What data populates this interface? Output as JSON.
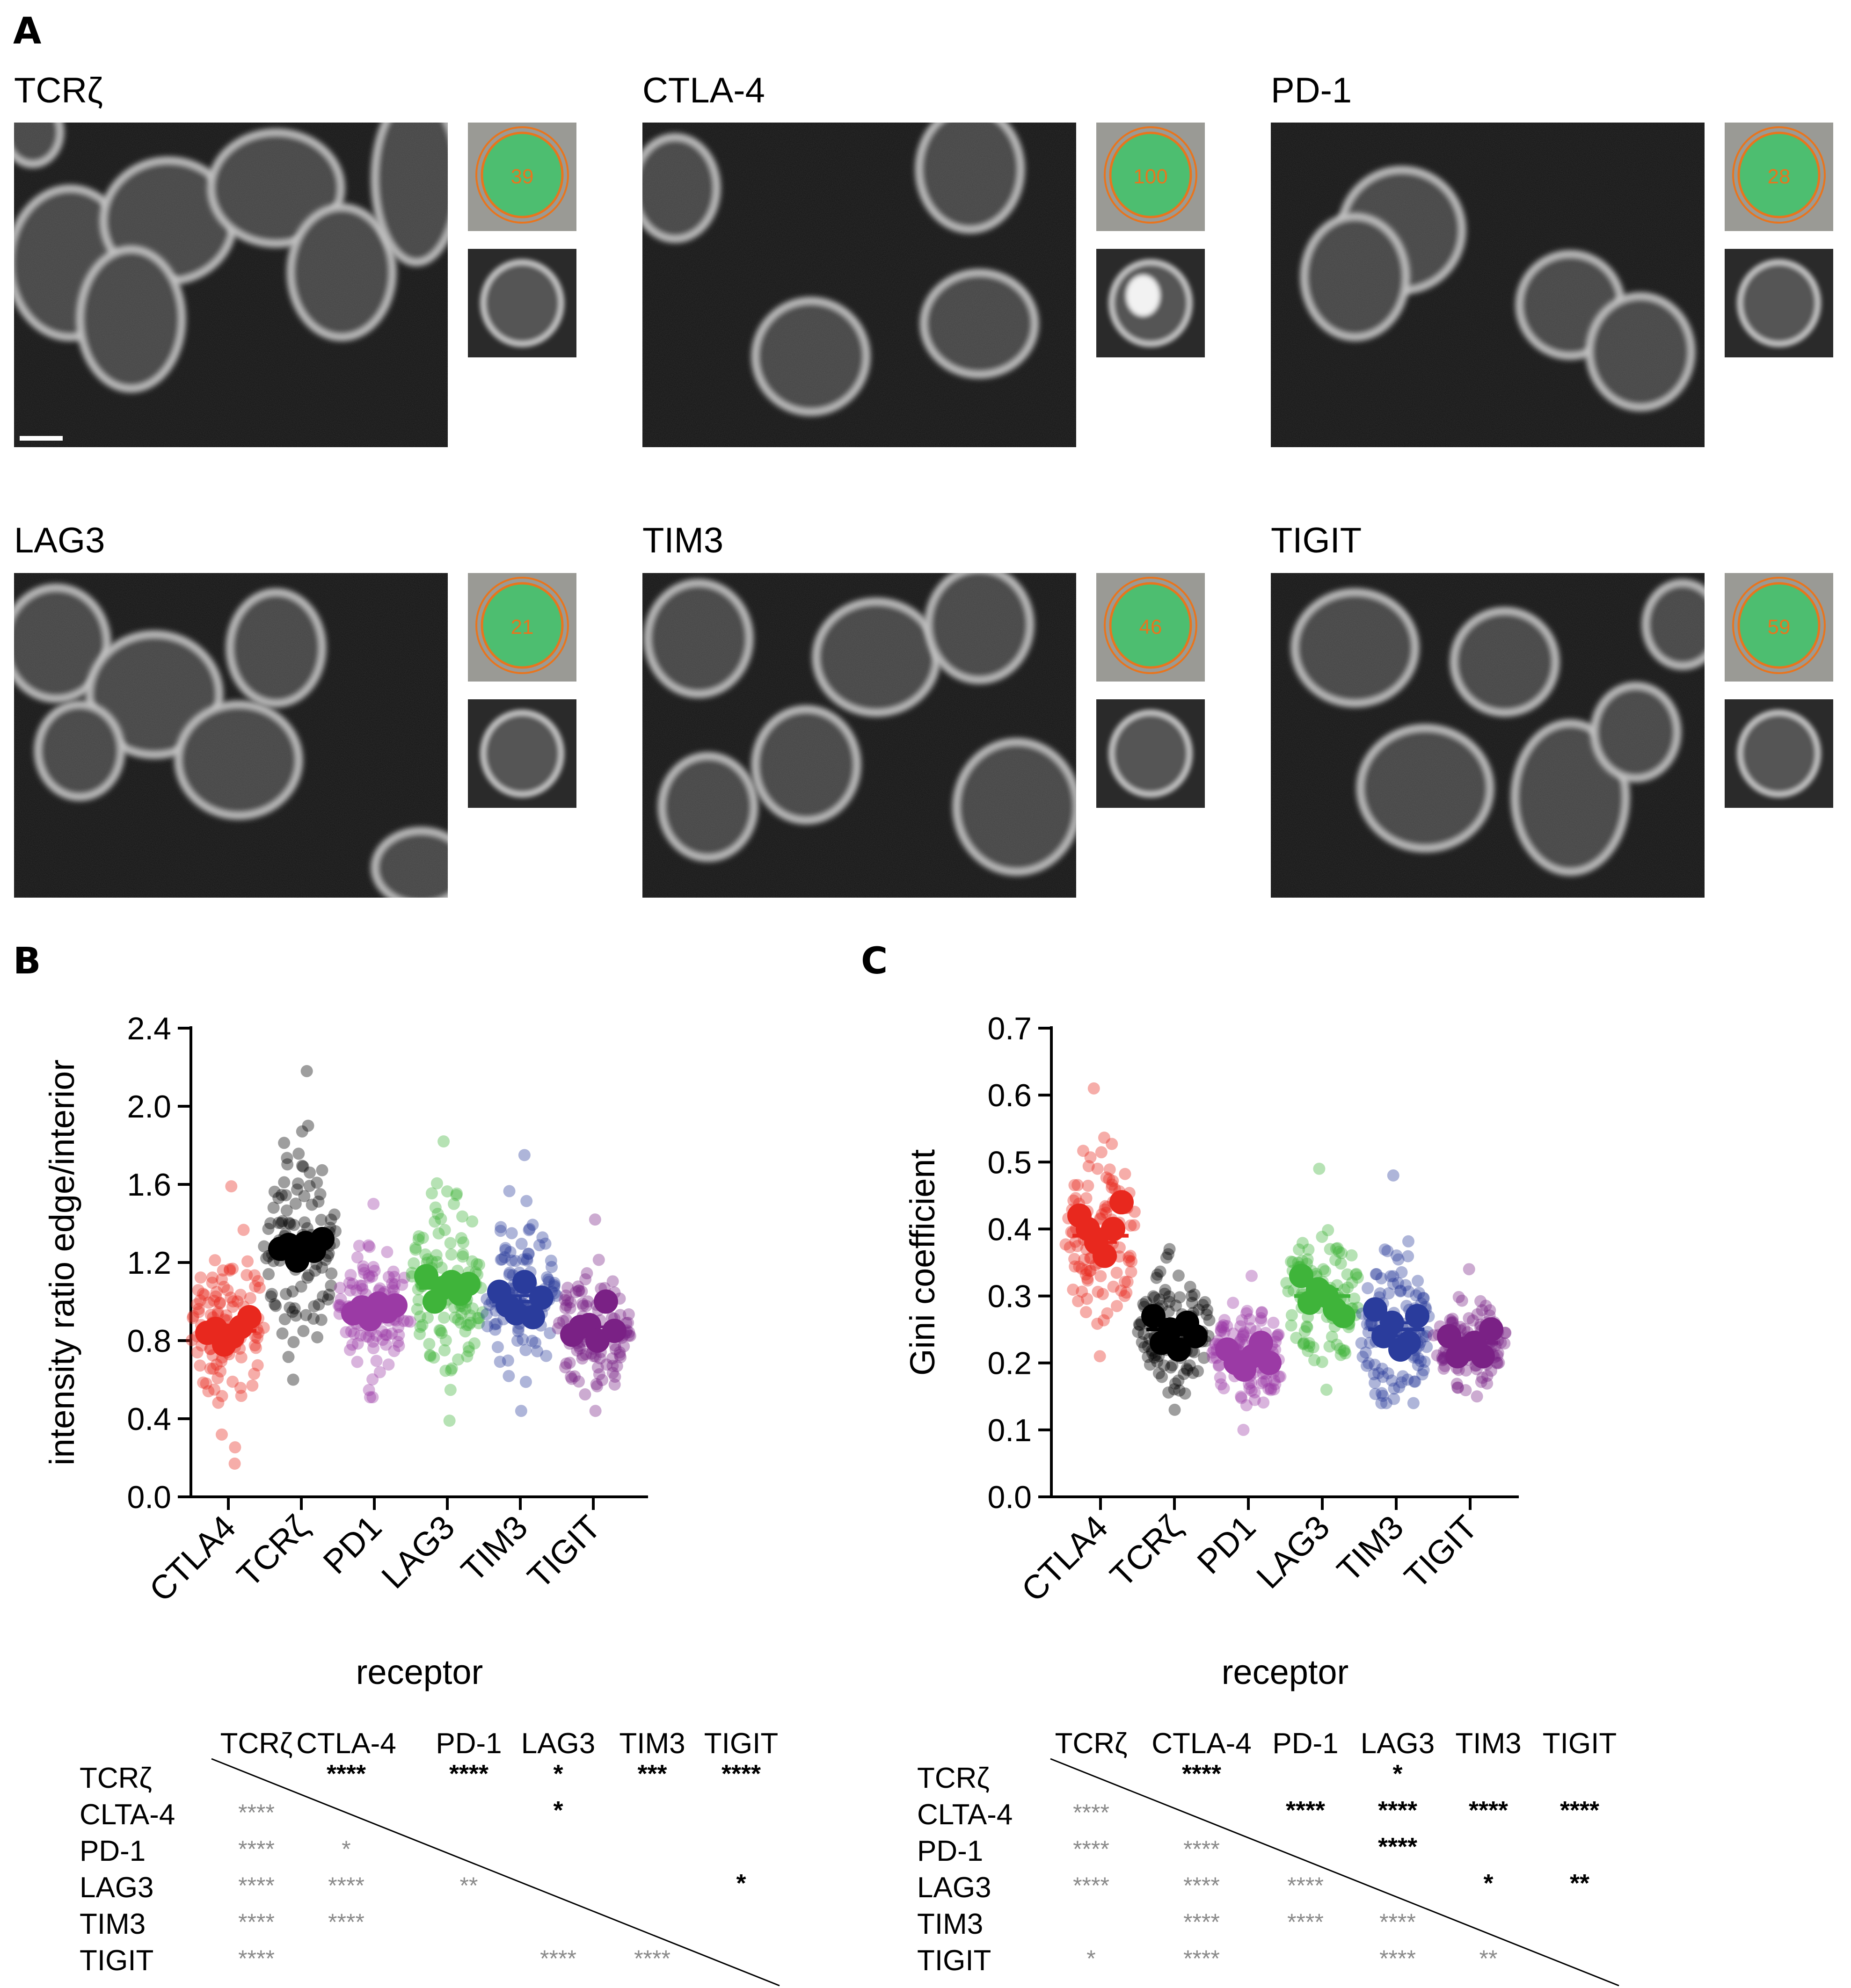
{
  "panel_letters": [
    "A",
    "B",
    "C"
  ],
  "panelA": {
    "images": [
      {
        "label": "TCRζ",
        "roi_number": "39"
      },
      {
        "label": "CTLA-4",
        "roi_number": "100"
      },
      {
        "label": "PD-1",
        "roi_number": "28"
      },
      {
        "label": "LAG3",
        "roi_number": "21"
      },
      {
        "label": "TIM3",
        "roi_number": "46"
      },
      {
        "label": "TIGIT",
        "roi_number": "59"
      }
    ]
  },
  "colors": {
    "CTLA4": "#e8281e",
    "TCRζ": "#000000",
    "PD1": "#9b3aa5",
    "LAG3": "#3fb43a",
    "TIM3": "#2a3c9c",
    "TIGIT": "#7a2185",
    "roi_fill": "#3fc46a",
    "roi_outline": "#e8751e",
    "sig_upper": "#000000",
    "sig_lower": "#8a8a8a"
  },
  "chart_data": [
    {
      "type": "scatter",
      "panel": "B",
      "ylabel": "intensity ratio edge/interior",
      "xlabel": "receptor",
      "categories": [
        "CTLA4",
        "TCRζ",
        "PD1",
        "LAG3",
        "TIM3",
        "TIGIT"
      ],
      "ylim": [
        0.0,
        2.4
      ],
      "yticks": [
        "0.0",
        "0.4",
        "0.8",
        "1.2",
        "1.6",
        "2.0",
        "2.4"
      ],
      "means": [
        0.85,
        1.28,
        0.96,
        1.07,
        1.0,
        0.85
      ],
      "sem": [
        0.03,
        0.03,
        0.02,
        0.03,
        0.03,
        0.02
      ],
      "ranges": [
        [
          0.17,
          1.59
        ],
        [
          0.6,
          2.18
        ],
        [
          0.51,
          1.5
        ],
        [
          0.39,
          1.82
        ],
        [
          0.44,
          1.75
        ],
        [
          0.44,
          1.42
        ]
      ],
      "replicate_means": [
        [
          0.84,
          0.86,
          0.78,
          0.82,
          0.87,
          0.92
        ],
        [
          1.27,
          1.29,
          1.21,
          1.3,
          1.26,
          1.32
        ],
        [
          0.94,
          0.97,
          0.91,
          0.99,
          0.95,
          0.98
        ],
        [
          1.13,
          1.0,
          1.07,
          1.1,
          1.04,
          1.09
        ],
        [
          1.05,
          0.98,
          0.94,
          1.1,
          0.92,
          1.02
        ],
        [
          0.83,
          0.87,
          0.88,
          0.8,
          1.0,
          0.85
        ]
      ],
      "significance_table": {
        "headers": [
          "TCRζ",
          "CTLA-4",
          "PD-1",
          "LAG3",
          "TIM3",
          "TIGIT"
        ],
        "rows": [
          "TCRζ",
          "CLTA-4",
          "PD-1",
          "LAG3",
          "TIM3",
          "TIGIT"
        ],
        "upper": [
          {
            "row": "TCRζ",
            "col": "CTLA-4",
            "stars": "****"
          },
          {
            "row": "TCRζ",
            "col": "PD-1",
            "stars": "****"
          },
          {
            "row": "TCRζ",
            "col": "LAG3",
            "stars": "*"
          },
          {
            "row": "TCRζ",
            "col": "TIM3",
            "stars": "***"
          },
          {
            "row": "TCRζ",
            "col": "TIGIT",
            "stars": "****"
          },
          {
            "row": "CLTA-4",
            "col": "LAG3",
            "stars": "*"
          },
          {
            "row": "LAG3",
            "col": "TIGIT",
            "stars": "*"
          }
        ],
        "lower": [
          {
            "row": "CLTA-4",
            "col": "TCRζ",
            "stars": "****"
          },
          {
            "row": "PD-1",
            "col": "TCRζ",
            "stars": "****"
          },
          {
            "row": "PD-1",
            "col": "CTLA-4",
            "stars": "*"
          },
          {
            "row": "LAG3",
            "col": "TCRζ",
            "stars": "****"
          },
          {
            "row": "LAG3",
            "col": "CTLA-4",
            "stars": "****"
          },
          {
            "row": "LAG3",
            "col": "PD-1",
            "stars": "**"
          },
          {
            "row": "TIM3",
            "col": "TCRζ",
            "stars": "****"
          },
          {
            "row": "TIM3",
            "col": "CTLA-4",
            "stars": "****"
          },
          {
            "row": "TIGIT",
            "col": "TCRζ",
            "stars": "****"
          },
          {
            "row": "TIGIT",
            "col": "LAG3",
            "stars": "****"
          },
          {
            "row": "TIGIT",
            "col": "TIM3",
            "stars": "****"
          }
        ]
      }
    },
    {
      "type": "scatter",
      "panel": "C",
      "ylabel": "Gini coefficient",
      "xlabel": "receptor",
      "categories": [
        "CTLA4",
        "TCRζ",
        "PD1",
        "LAG3",
        "TIM3",
        "TIGIT"
      ],
      "ylim": [
        0.0,
        0.7
      ],
      "yticks": [
        "0.0",
        "0.1",
        "0.2",
        "0.3",
        "0.4",
        "0.5",
        "0.6",
        "0.7"
      ],
      "means": [
        0.39,
        0.25,
        0.21,
        0.3,
        0.25,
        0.23
      ],
      "sem": [
        0.01,
        0.008,
        0.007,
        0.01,
        0.01,
        0.007
      ],
      "ranges": [
        [
          0.21,
          0.61
        ],
        [
          0.13,
          0.37
        ],
        [
          0.1,
          0.33
        ],
        [
          0.16,
          0.49
        ],
        [
          0.14,
          0.48
        ],
        [
          0.15,
          0.34
        ]
      ],
      "replicate_means": [
        [
          0.42,
          0.4,
          0.38,
          0.36,
          0.4,
          0.44
        ],
        [
          0.27,
          0.23,
          0.25,
          0.22,
          0.26,
          0.24
        ],
        [
          0.22,
          0.2,
          0.19,
          0.21,
          0.23,
          0.2
        ],
        [
          0.33,
          0.29,
          0.31,
          0.3,
          0.28,
          0.27
        ],
        [
          0.28,
          0.24,
          0.26,
          0.22,
          0.23,
          0.27
        ],
        [
          0.24,
          0.21,
          0.22,
          0.23,
          0.21,
          0.25
        ]
      ],
      "significance_table": {
        "headers": [
          "TCRζ",
          "CTLA-4",
          "PD-1",
          "LAG3",
          "TIM3",
          "TIGIT"
        ],
        "rows": [
          "TCRζ",
          "CLTA-4",
          "PD-1",
          "LAG3",
          "TIM3",
          "TIGIT"
        ],
        "upper": [
          {
            "row": "TCRζ",
            "col": "CTLA-4",
            "stars": "****"
          },
          {
            "row": "TCRζ",
            "col": "LAG3",
            "stars": "*"
          },
          {
            "row": "CLTA-4",
            "col": "PD-1",
            "stars": "****"
          },
          {
            "row": "CLTA-4",
            "col": "LAG3",
            "stars": "****"
          },
          {
            "row": "CLTA-4",
            "col": "TIM3",
            "stars": "****"
          },
          {
            "row": "CLTA-4",
            "col": "TIGIT",
            "stars": "****"
          },
          {
            "row": "PD-1",
            "col": "LAG3",
            "stars": "****"
          },
          {
            "row": "LAG3",
            "col": "TIM3",
            "stars": "*"
          },
          {
            "row": "LAG3",
            "col": "TIGIT",
            "stars": "**"
          }
        ],
        "lower": [
          {
            "row": "CLTA-4",
            "col": "TCRζ",
            "stars": "****"
          },
          {
            "row": "PD-1",
            "col": "TCRζ",
            "stars": "****"
          },
          {
            "row": "PD-1",
            "col": "CTLA-4",
            "stars": "****"
          },
          {
            "row": "LAG3",
            "col": "TCRζ",
            "stars": "****"
          },
          {
            "row": "LAG3",
            "col": "CTLA-4",
            "stars": "****"
          },
          {
            "row": "LAG3",
            "col": "PD-1",
            "stars": "****"
          },
          {
            "row": "TIM3",
            "col": "CTLA-4",
            "stars": "****"
          },
          {
            "row": "TIM3",
            "col": "PD-1",
            "stars": "****"
          },
          {
            "row": "TIM3",
            "col": "LAG3",
            "stars": "****"
          },
          {
            "row": "TIGIT",
            "col": "TCRζ",
            "stars": "*"
          },
          {
            "row": "TIGIT",
            "col": "CTLA-4",
            "stars": "****"
          },
          {
            "row": "TIGIT",
            "col": "LAG3",
            "stars": "****"
          },
          {
            "row": "TIGIT",
            "col": "TIM3",
            "stars": "**"
          }
        ]
      }
    }
  ]
}
